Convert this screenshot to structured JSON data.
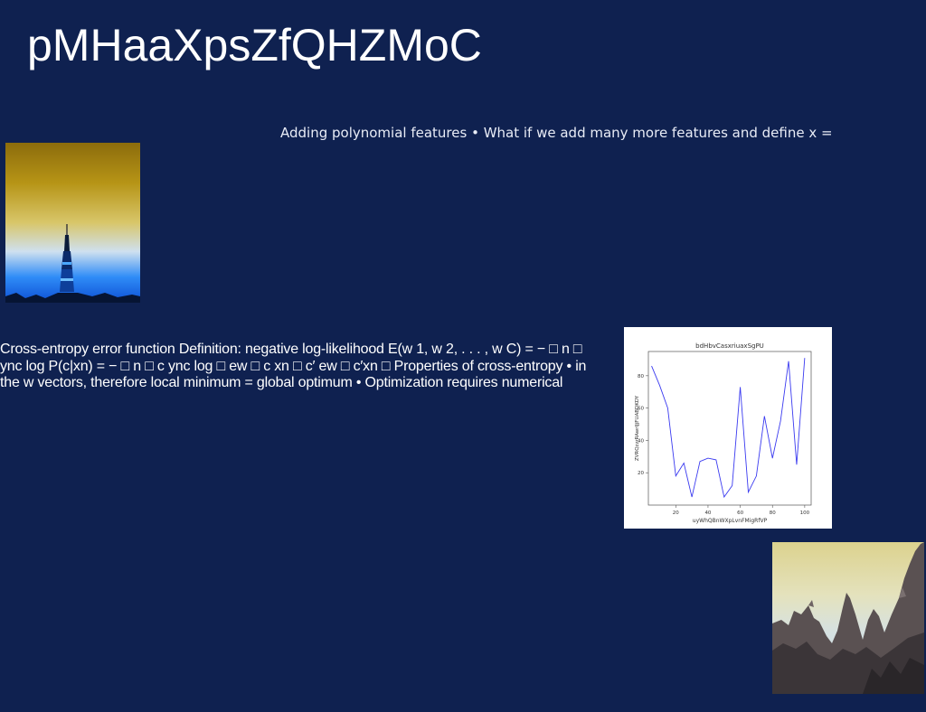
{
  "slide": {
    "title": "pMHaaXpsZfQHZMoC",
    "subtitle": "Adding polynomial features • What if we add many more features and define x =",
    "body": "Cross-entropy error function Definition: negative log-likelihood E(w 1, w 2, . . . , w C) = − □ n □ ync log P(c|xn) = − □ n □ c ync log □ ew □ c xn □ c′ ew □ c′xn □ Properties of cross-entropy • in the w vectors, therefore local minimum = global optimum • Optimization requires numerical"
  },
  "images": {
    "tower": "photo-tower-at-dusk",
    "rocks": "photo-rocky-cliffs"
  },
  "chart_data": {
    "type": "line",
    "title": "bdHbvCasxriuaxSgPU",
    "xlabel": "uyWhQBnWXpLvnFMigRfVP",
    "ylabel": "ZVRQzzrRAwrIJjFUABDKDY",
    "xlim": [
      3,
      104
    ],
    "ylim": [
      0,
      95
    ],
    "xticks": [
      20,
      40,
      60,
      80,
      100
    ],
    "yticks": [
      20,
      40,
      60,
      80
    ],
    "grid": false,
    "series": [
      {
        "color": "#3a3af0",
        "x": [
          5,
          10,
          15,
          20,
          25,
          30,
          35,
          40,
          45,
          50,
          55,
          60,
          65,
          70,
          75,
          80,
          85,
          90,
          95,
          100
        ],
        "y": [
          86,
          74,
          60,
          18,
          26,
          5,
          27,
          29,
          28,
          5,
          12,
          73,
          8,
          18,
          55,
          29,
          52,
          89,
          25,
          91
        ]
      }
    ]
  }
}
